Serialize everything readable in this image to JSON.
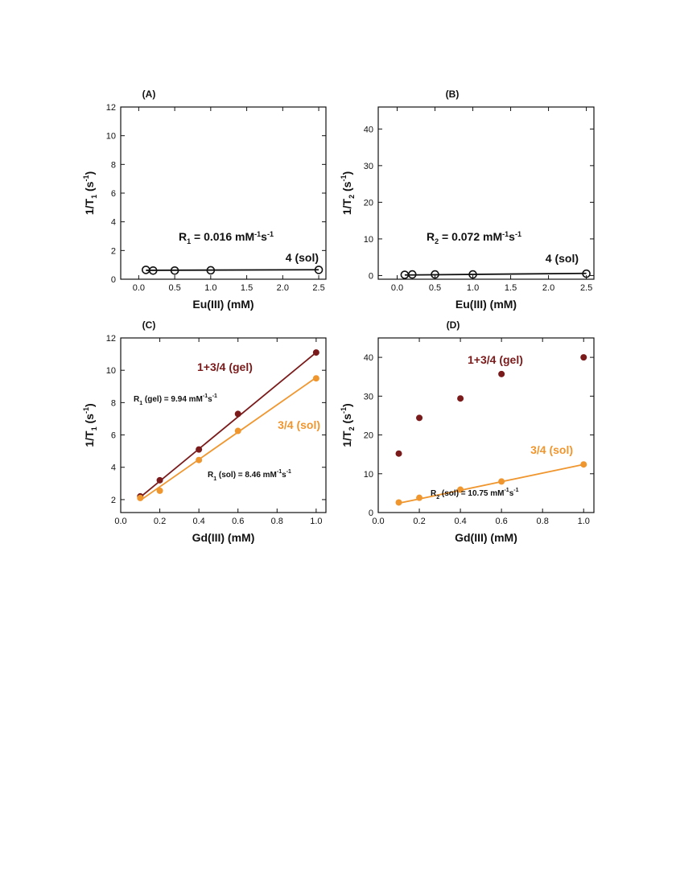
{
  "chart_data": [
    {
      "panel": "(A)",
      "type": "scatter",
      "xlabel": "Eu(III) (mM)",
      "ylabel": {
        "main": "1/T",
        "sub": "1",
        "pre_sup": " (s",
        "sup": "-1",
        "post": ")"
      },
      "xlim": [
        -0.25,
        2.6
      ],
      "ylim": [
        0,
        12
      ],
      "xticks": [
        "0.0",
        "0.5",
        "1.0",
        "1.5",
        "2.0",
        "2.5"
      ],
      "yticks": [
        "0",
        "2",
        "4",
        "6",
        "8",
        "10",
        "12"
      ],
      "series": [
        {
          "name": "4 (sol)",
          "marker": "open-circle",
          "color": "#111111",
          "x": [
            0.1,
            0.2,
            0.5,
            1.0,
            2.5
          ],
          "y": [
            0.65,
            0.6,
            0.6,
            0.62,
            0.65
          ],
          "fit": {
            "x": [
              0.1,
              2.5
            ],
            "y": [
              0.62,
              0.66
            ]
          }
        }
      ],
      "annotation": {
        "symbol": "R",
        "sub": "1",
        "text": " = 0.016 mM",
        "sup1": "-1",
        "mid": "s",
        "sup2": "-1"
      }
    },
    {
      "panel": "(B)",
      "type": "scatter",
      "xlabel": "Eu(III) (mM)",
      "ylabel": {
        "main": "1/T",
        "sub": "2",
        "pre_sup": " (s",
        "sup": "-1",
        "post": ")"
      },
      "xlim": [
        -0.25,
        2.6
      ],
      "ylim": [
        -1,
        46
      ],
      "xticks": [
        "0.0",
        "0.5",
        "1.0",
        "1.5",
        "2.0",
        "2.5"
      ],
      "yticks": [
        "0",
        "10",
        "20",
        "30",
        "40"
      ],
      "series": [
        {
          "name": "4 (sol)",
          "marker": "open-circle",
          "color": "#111111",
          "x": [
            0.1,
            0.2,
            0.5,
            1.0,
            2.5
          ],
          "y": [
            0.2,
            0.3,
            0.3,
            0.3,
            0.5
          ],
          "fit": {
            "x": [
              0.1,
              2.5
            ],
            "y": [
              0.15,
              0.6
            ]
          }
        }
      ],
      "annotation": {
        "symbol": "R",
        "sub": "2",
        "text": " = 0.072 mM",
        "sup1": "-1",
        "mid": "s",
        "sup2": "-1"
      }
    },
    {
      "panel": "(C)",
      "type": "scatter",
      "xlabel": "Gd(III) (mM)",
      "ylabel": {
        "main": "1/T",
        "sub": "1",
        "pre_sup": " (s",
        "sup": "-1",
        "post": ")"
      },
      "xlim": [
        0.0,
        1.05
      ],
      "ylim": [
        1.2,
        12
      ],
      "xticks": [
        "0.0",
        "0.2",
        "0.4",
        "0.6",
        "0.8",
        "1.0"
      ],
      "yticks": [
        "2",
        "4",
        "6",
        "8",
        "10",
        "12"
      ],
      "series": [
        {
          "name": "1+3/4 (gel)",
          "marker": "filled-circle",
          "color": "#7a1a1a",
          "x": [
            0.1,
            0.2,
            0.4,
            0.6,
            1.0
          ],
          "y": [
            2.2,
            3.2,
            5.1,
            7.3,
            11.1
          ],
          "fit": {
            "x": [
              0.1,
              1.0
            ],
            "y": [
              2.15,
              11.1
            ]
          },
          "annotation": {
            "symbol": "R",
            "sub": "1",
            "text": " (gel) = 9.94 mM",
            "sup1": "-1",
            "mid": "s",
            "sup2": "-1"
          }
        },
        {
          "name": "3/4 (sol)",
          "marker": "filled-circle",
          "color": "#f0962e",
          "x": [
            0.1,
            0.2,
            0.4,
            0.6,
            1.0
          ],
          "y": [
            2.1,
            2.55,
            4.45,
            6.25,
            9.5
          ],
          "fit": {
            "x": [
              0.1,
              1.0
            ],
            "y": [
              1.95,
              9.55
            ]
          },
          "annotation": {
            "symbol": "R",
            "sub": "1",
            "text": " (sol) = 8.46 mM",
            "sup1": "-1",
            "mid": "s",
            "sup2": "-1"
          }
        }
      ]
    },
    {
      "panel": "(D)",
      "type": "scatter",
      "xlabel": "Gd(III) (mM)",
      "ylabel": {
        "main": "1/T",
        "sub": "2",
        "pre_sup": " (s",
        "sup": "-1",
        "post": ")"
      },
      "xlim": [
        0.0,
        1.05
      ],
      "ylim": [
        0,
        45
      ],
      "xticks": [
        "0.0",
        "0.2",
        "0.4",
        "0.6",
        "0.8",
        "1.0"
      ],
      "yticks": [
        "0",
        "10",
        "20",
        "30",
        "40"
      ],
      "series": [
        {
          "name": "1+3/4 (gel)",
          "marker": "filled-circle",
          "color": "#7a1a1a",
          "x": [
            0.1,
            0.2,
            0.4,
            0.6,
            1.0
          ],
          "y": [
            15.2,
            24.4,
            29.4,
            35.7,
            40.0
          ]
        },
        {
          "name": "3/4 (sol)",
          "marker": "filled-circle",
          "color": "#f0962e",
          "x": [
            0.1,
            0.2,
            0.4,
            0.6,
            1.0
          ],
          "y": [
            2.6,
            3.8,
            5.9,
            8.0,
            12.4
          ],
          "fit": {
            "x": [
              0.1,
              1.0
            ],
            "y": [
              2.4,
              12.4
            ]
          },
          "annotation": {
            "symbol": "R",
            "sub": "2",
            "text": " (sol) = 10.75 mM",
            "sup1": "-1",
            "mid": "s",
            "sup2": "-1"
          }
        }
      ]
    }
  ]
}
